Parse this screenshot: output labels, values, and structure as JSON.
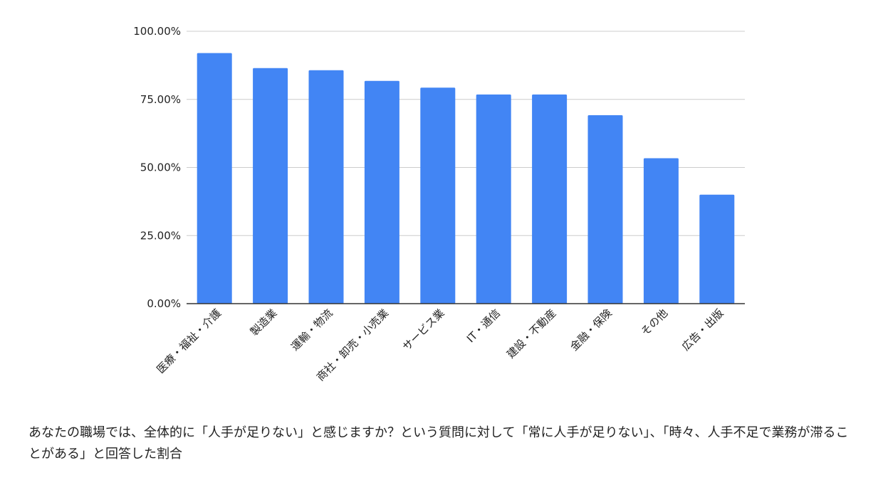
{
  "chart_data": {
    "type": "bar",
    "title": "",
    "xlabel": "",
    "ylabel": "",
    "categories": [
      "医療・福祉・介護",
      "製造業",
      "運輸・物流",
      "商社・卸売・小売業",
      "サービス業",
      "IT・通信",
      "建設・不動産",
      "金融・保険",
      "その他",
      "広告・出版"
    ],
    "values": [
      92,
      86.5,
      85.7,
      81.8,
      79.3,
      76.8,
      76.8,
      69.2,
      53.4,
      40
    ],
    "ylim": [
      0,
      100
    ],
    "yticks": [
      "0.00%",
      "25.00%",
      "50.00%",
      "75.00%",
      "100.00%"
    ],
    "grid": true,
    "legend": "none",
    "bar_color": "#4285f4",
    "grid_color": "#cccccc",
    "axis_color": "#333333"
  },
  "caption": {
    "text": "あなたの職場では、全体的に「人手が足りない」と感じますか？という質問に対して「常に人手が足りない」、「時々、人手不足で業務が滞ることがある」と回答した割合"
  }
}
